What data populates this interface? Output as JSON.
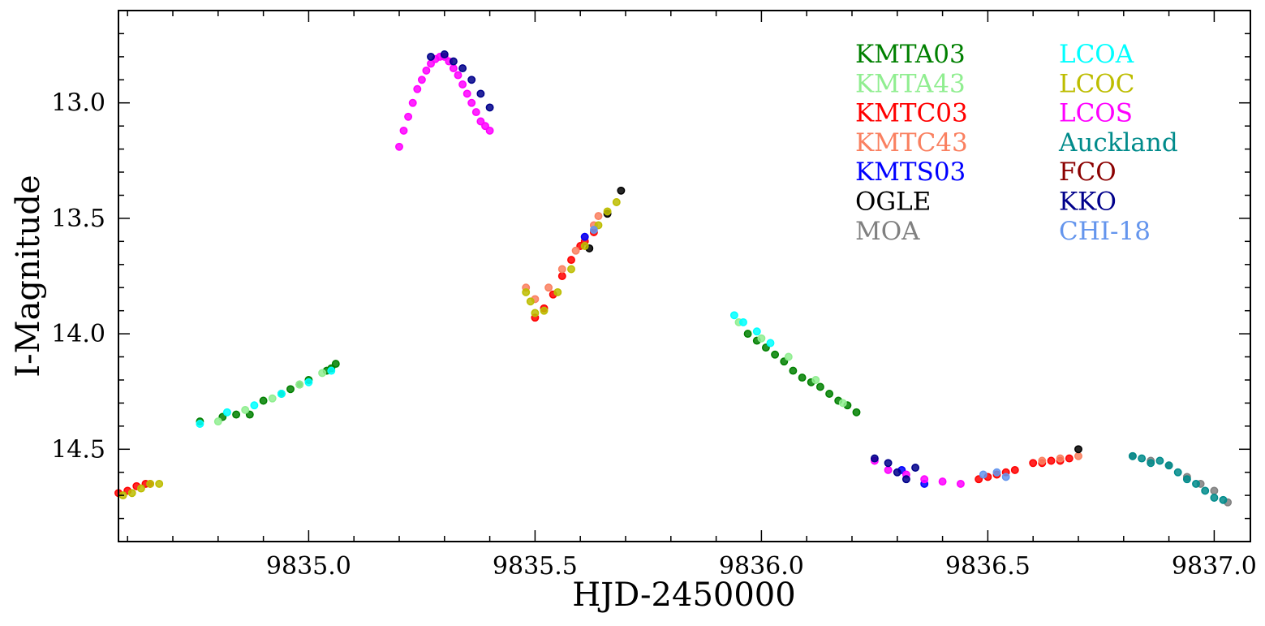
{
  "chart_data": {
    "type": "scatter",
    "xlabel": "HJD-2450000",
    "ylabel": "I-Magnitude",
    "xlim": [
      9834.58,
      9837.08
    ],
    "ylim": [
      14.9,
      12.6
    ],
    "y_inverted": true,
    "x_ticks": [
      9835.0,
      9835.5,
      9836.0,
      9836.5,
      9837.0
    ],
    "x_tick_labels": [
      "9835.0",
      "9835.5",
      "9836.0",
      "9836.5",
      "9837.0"
    ],
    "y_ticks": [
      13.0,
      13.5,
      14.0,
      14.5
    ],
    "y_tick_labels": [
      "13.0",
      "13.5",
      "14.0",
      "14.5"
    ],
    "legend_position": "top-right",
    "series": [
      {
        "name": "KMTA03",
        "color": "#008000",
        "x": [
          9834.76,
          9834.81,
          9834.84,
          9834.87,
          9834.9,
          9834.94,
          9834.96,
          9834.98,
          9835.0,
          9835.04,
          9835.05,
          9835.06,
          9835.97,
          9835.99,
          9836.01,
          9836.03,
          9836.05,
          9836.07,
          9836.09,
          9836.11,
          9836.13,
          9836.15,
          9836.17,
          9836.19,
          9836.21
        ],
        "y": [
          14.38,
          14.36,
          14.35,
          14.35,
          14.29,
          14.26,
          14.24,
          14.22,
          14.2,
          14.16,
          14.15,
          14.13,
          14.0,
          14.03,
          14.06,
          14.09,
          14.12,
          14.16,
          14.19,
          14.21,
          14.23,
          14.26,
          14.29,
          14.31,
          14.34
        ]
      },
      {
        "name": "KMTA43",
        "color": "#90ee90",
        "x": [
          9834.8,
          9834.86,
          9834.92,
          9834.98,
          9835.03,
          9835.95,
          9836.0,
          9836.06,
          9836.12,
          9836.18
        ],
        "y": [
          14.38,
          14.33,
          14.28,
          14.22,
          14.17,
          13.95,
          14.02,
          14.1,
          14.2,
          14.3
        ]
      },
      {
        "name": "KMTC03",
        "color": "#ff0000",
        "x": [
          9834.58,
          9834.6,
          9834.62,
          9834.64,
          9834.65,
          9835.5,
          9835.52,
          9835.54,
          9835.56,
          9835.58,
          9835.6,
          9835.61,
          9835.63,
          9836.48,
          9836.5,
          9836.52,
          9836.54,
          9836.56,
          9836.6,
          9836.62,
          9836.64,
          9836.66,
          9836.68
        ],
        "y": [
          14.69,
          14.68,
          14.66,
          14.65,
          14.65,
          13.93,
          13.89,
          13.83,
          13.75,
          13.68,
          13.62,
          13.6,
          13.56,
          14.63,
          14.62,
          14.61,
          14.6,
          14.59,
          14.56,
          14.56,
          14.55,
          14.55,
          14.54
        ]
      },
      {
        "name": "KMTC43",
        "color": "#fa8060",
        "x": [
          9835.48,
          9835.5,
          9835.53,
          9835.56,
          9835.59,
          9835.61,
          9835.63,
          9835.64,
          9836.62,
          9836.66,
          9836.7
        ],
        "y": [
          13.8,
          13.85,
          13.8,
          13.72,
          13.64,
          13.58,
          13.53,
          13.49,
          14.55,
          14.54,
          14.53
        ]
      },
      {
        "name": "KMTS03",
        "color": "#0000ff",
        "x": [
          9835.61,
          9836.31,
          9836.36
        ],
        "y": [
          13.58,
          14.59,
          14.65
        ]
      },
      {
        "name": "OGLE",
        "color": "#000000",
        "x": [
          9835.62,
          9835.66,
          9835.69,
          9836.7
        ],
        "y": [
          13.63,
          13.48,
          13.38,
          14.5
        ]
      },
      {
        "name": "MOA",
        "color": "#808080",
        "x": [
          9836.82,
          9836.86,
          9836.9,
          9836.94,
          9836.97,
          9837.0,
          9837.03
        ],
        "y": [
          14.53,
          14.55,
          14.57,
          14.62,
          14.65,
          14.68,
          14.73
        ]
      },
      {
        "name": "LCOA",
        "color": "#00ffff",
        "x": [
          9834.76,
          9834.82,
          9834.88,
          9834.94,
          9835.0,
          9835.05,
          9835.94,
          9835.96,
          9835.99,
          9836.02
        ],
        "y": [
          14.39,
          14.34,
          14.31,
          14.26,
          14.21,
          14.16,
          13.92,
          13.95,
          13.99,
          14.04
        ]
      },
      {
        "name": "LCOC",
        "color": "#bdbd00",
        "x": [
          9834.59,
          9834.61,
          9834.63,
          9834.65,
          9834.67,
          9835.48,
          9835.49,
          9835.5,
          9835.52,
          9835.55,
          9835.58,
          9835.61,
          9835.64,
          9835.66,
          9835.68
        ],
        "y": [
          14.7,
          14.69,
          14.67,
          14.65,
          14.65,
          13.82,
          13.86,
          13.91,
          13.9,
          13.82,
          13.72,
          13.62,
          13.53,
          13.47,
          13.43
        ]
      },
      {
        "name": "LCOS",
        "color": "#ff00ff",
        "x": [
          9835.2,
          9835.21,
          9835.22,
          9835.23,
          9835.24,
          9835.25,
          9835.26,
          9835.27,
          9835.28,
          9835.29,
          9835.3,
          9835.31,
          9835.32,
          9835.33,
          9835.34,
          9835.35,
          9835.36,
          9835.37,
          9835.38,
          9835.39,
          9835.4,
          9836.25,
          9836.28,
          9836.32,
          9836.36,
          9836.4,
          9836.44
        ],
        "y": [
          13.19,
          13.12,
          13.06,
          13.0,
          12.94,
          12.9,
          12.86,
          12.83,
          12.81,
          12.8,
          12.8,
          12.82,
          12.85,
          12.88,
          12.92,
          12.96,
          13.0,
          13.04,
          13.08,
          13.1,
          13.12,
          14.55,
          14.59,
          14.61,
          14.63,
          14.64,
          14.65
        ]
      },
      {
        "name": "Auckland",
        "color": "#008b8b",
        "x": [
          9836.82,
          9836.84,
          9836.86,
          9836.88,
          9836.9,
          9836.92,
          9836.94,
          9836.96,
          9836.98,
          9837.0,
          9837.02
        ],
        "y": [
          14.53,
          14.54,
          14.56,
          14.55,
          14.57,
          14.6,
          14.63,
          14.65,
          14.68,
          14.71,
          14.72
        ]
      },
      {
        "name": "FCO",
        "color": "#8b0000",
        "x": [],
        "y": []
      },
      {
        "name": "KKO",
        "color": "#00008b",
        "x": [
          9835.27,
          9835.3,
          9835.32,
          9835.34,
          9835.36,
          9835.38,
          9835.4,
          9836.25,
          9836.28,
          9836.3,
          9836.32,
          9836.34
        ],
        "y": [
          12.8,
          12.79,
          12.82,
          12.85,
          12.9,
          12.96,
          13.02,
          14.54,
          14.56,
          14.6,
          14.63,
          14.58
        ]
      },
      {
        "name": "CHI-18",
        "color": "#6495ed",
        "x": [
          9836.49,
          9836.52,
          9836.54,
          9835.63
        ],
        "y": [
          14.61,
          14.6,
          14.62,
          13.55
        ]
      }
    ]
  }
}
